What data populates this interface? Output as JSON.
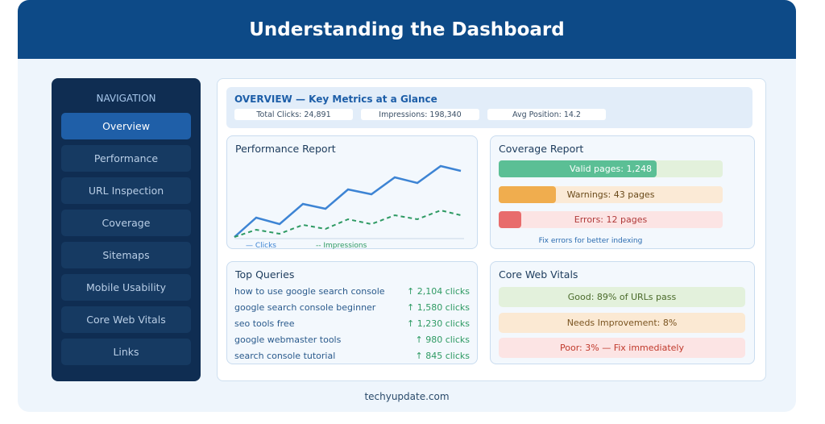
{
  "header": {
    "title": "Understanding the Dashboard"
  },
  "sidebar": {
    "heading": "NAVIGATION",
    "items": [
      "Overview",
      "Performance",
      "URL Inspection",
      "Coverage",
      "Sitemaps",
      "Mobile Usability",
      "Core Web Vitals",
      "Links"
    ]
  },
  "overview": {
    "title": "OVERVIEW — Key Metrics at a Glance",
    "metrics": [
      "Total Clicks: 24,891",
      "Impressions: 198,340",
      "Avg Position: 14.2"
    ]
  },
  "performance": {
    "title": "Performance Report",
    "legend": [
      "— Clicks",
      "-- Impressions"
    ]
  },
  "coverage": {
    "title": "Coverage Report",
    "bars": [
      "Valid pages: 1,248",
      "Warnings: 43 pages",
      "Errors: 12 pages"
    ],
    "note": "Fix errors for better indexing"
  },
  "queries": {
    "title": "Top Queries",
    "rows": [
      [
        "how to use google search console",
        "↑ 2,104 clicks"
      ],
      [
        "google search console beginner",
        "↑ 1,580 clicks"
      ],
      [
        "seo tools free",
        "↑ 1,230 clicks"
      ],
      [
        "google webmaster tools",
        "↑ 980 clicks"
      ],
      [
        "search console tutorial",
        "↑ 845 clicks"
      ]
    ]
  },
  "vitals": {
    "title": "Core Web Vitals",
    "items": [
      "Good: 89% of URLs pass",
      "Needs Improvement: 8%",
      "Poor: 3% — Fix immediately"
    ]
  },
  "footer": {
    "text": "techyupdate.com"
  }
}
